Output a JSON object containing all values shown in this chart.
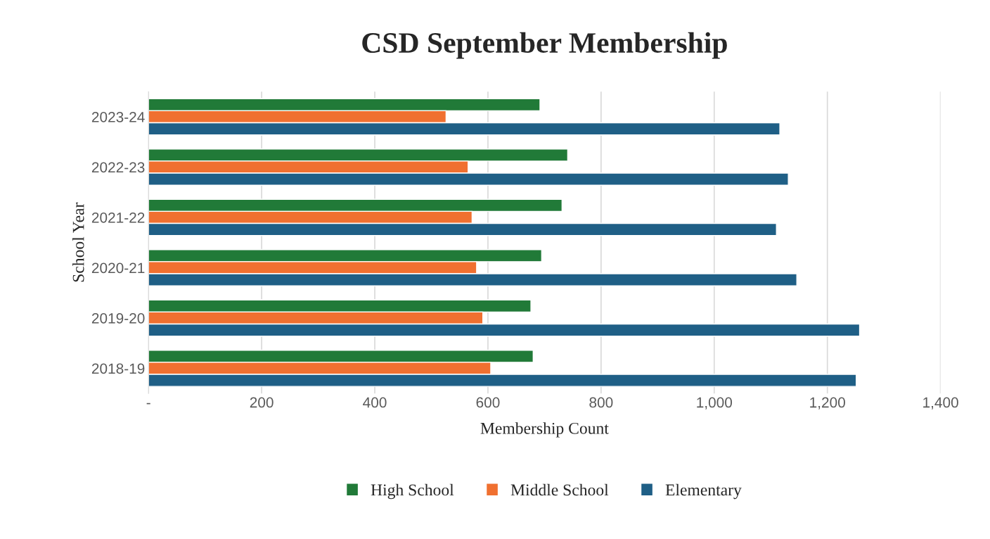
{
  "chart_data": {
    "type": "bar",
    "orientation": "horizontal",
    "title": "CSD September Membership",
    "xlabel": "Membership Count",
    "ylabel": "School Year",
    "categories": [
      "2023-24",
      "2022-23",
      "2021-22",
      "2020-21",
      "2019-20",
      "2018-19"
    ],
    "series": [
      {
        "name": "High School",
        "color": "#217a38",
        "values": [
          692,
          741,
          731,
          695,
          676,
          680
        ]
      },
      {
        "name": "Middle School",
        "color": "#f07030",
        "values": [
          526,
          565,
          572,
          580,
          591,
          605
        ]
      },
      {
        "name": "Elementary",
        "color": "#1f5f86",
        "values": [
          1116,
          1131,
          1110,
          1146,
          1257,
          1251
        ]
      }
    ],
    "xlim": [
      0,
      1400
    ],
    "xticks": [
      {
        "value": 0,
        "label": "-"
      },
      200,
      400,
      600,
      800,
      {
        "value": 1000,
        "label": "1,000"
      },
      {
        "value": 1200,
        "label": "1,200"
      },
      {
        "value": 1400,
        "label": "1,400"
      }
    ],
    "grid": "x",
    "legend": "bottom"
  }
}
